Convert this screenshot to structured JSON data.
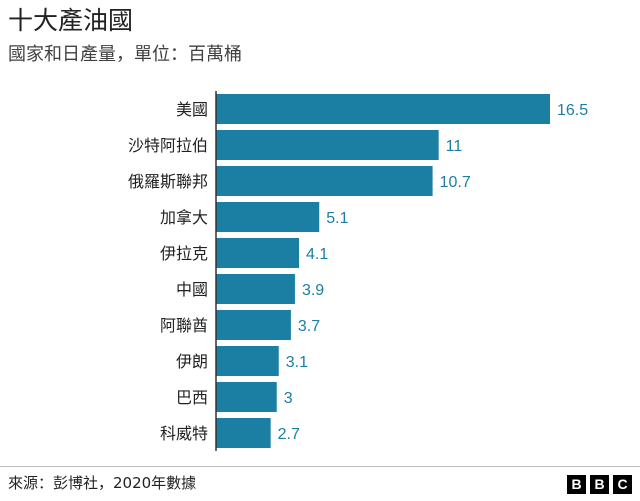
{
  "title": "十大產油國",
  "subtitle": "國家和日產量，單位：百萬桶",
  "source": "來源：彭博社，2020年數據",
  "logo_letters": [
    "B",
    "B",
    "C"
  ],
  "colors": {
    "bar": "#1b7fa3",
    "label": "#1b7fa3",
    "axis": "#333333"
  },
  "chart_data": {
    "type": "bar",
    "orientation": "horizontal",
    "title": "十大產油國",
    "subtitle": "國家和日產量，單位：百萬桶",
    "categories": [
      "美國",
      "沙特阿拉伯",
      "俄羅斯聯邦",
      "加拿大",
      "伊拉克",
      "中國",
      "阿聯酋",
      "伊朗",
      "巴西",
      "科威特"
    ],
    "values": [
      16.5,
      11,
      10.7,
      5.1,
      4.1,
      3.9,
      3.7,
      3.1,
      3,
      2.7
    ],
    "data_labels": [
      "16.5",
      "11",
      "10.7",
      "5.1",
      "4.1",
      "3.9",
      "3.7",
      "3.1",
      "3",
      "2.7"
    ],
    "xlim": [
      0,
      16.5
    ],
    "grid": false,
    "legend": "none"
  }
}
